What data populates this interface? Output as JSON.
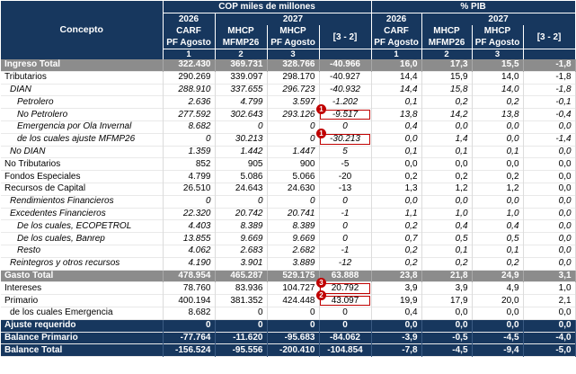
{
  "header": {
    "concept": "Concepto",
    "group_cop": "COP miles de millones",
    "group_pib": "% PIB",
    "year_2026": "2026",
    "year_2027": "2027",
    "carf": "CARF",
    "pf_agosto": "PF Agosto",
    "mhcp": "MHCP",
    "mfmp26": "MFMP26",
    "diff": "[3 - 2]",
    "num1": "1",
    "num2": "2",
    "num3": "3"
  },
  "markers": {
    "m1": "1",
    "m2": "1",
    "m3": "3",
    "m4": "2"
  },
  "rows": [
    {
      "label": "Ingreso Total",
      "cop": [
        "322.430",
        "369.731",
        "328.766",
        "-40.966"
      ],
      "pib": [
        "16,0",
        "17,3",
        "15,5",
        "-1,8"
      ]
    },
    {
      "label": "Tributarios",
      "cop": [
        "290.269",
        "339.097",
        "298.170",
        "-40.927"
      ],
      "pib": [
        "14,4",
        "15,9",
        "14,0",
        "-1,8"
      ]
    },
    {
      "label": "DIAN",
      "cop": [
        "288.910",
        "337.655",
        "296.723",
        "-40.932"
      ],
      "pib": [
        "14,4",
        "15,8",
        "14,0",
        "-1,8"
      ]
    },
    {
      "label": "Petrolero",
      "cop": [
        "2.636",
        "4.799",
        "3.597",
        "-1.202"
      ],
      "pib": [
        "0,1",
        "0,2",
        "0,2",
        "-0,1"
      ]
    },
    {
      "label": "No Petrolero",
      "cop": [
        "277.592",
        "302.643",
        "293.126",
        "-9.517"
      ],
      "pib": [
        "13,8",
        "14,2",
        "13,8",
        "-0,4"
      ]
    },
    {
      "label": "Emergencia por Ola Invernal",
      "cop": [
        "8.682",
        "0",
        "0",
        "0"
      ],
      "pib": [
        "0,4",
        "0,0",
        "0,0",
        "0,0"
      ]
    },
    {
      "label": "de los cuales ajuste MFMP26",
      "cop": [
        "0",
        "30.213",
        "0",
        "-30.213"
      ],
      "pib": [
        "0,0",
        "1,4",
        "0,0",
        "-1,4"
      ]
    },
    {
      "label": "No DIAN",
      "cop": [
        "1.359",
        "1.442",
        "1.447",
        "5"
      ],
      "pib": [
        "0,1",
        "0,1",
        "0,1",
        "0,0"
      ]
    },
    {
      "label": "No Tributarios",
      "cop": [
        "852",
        "905",
        "900",
        "-5"
      ],
      "pib": [
        "0,0",
        "0,0",
        "0,0",
        "0,0"
      ]
    },
    {
      "label": "Fondos Especiales",
      "cop": [
        "4.799",
        "5.086",
        "5.066",
        "-20"
      ],
      "pib": [
        "0,2",
        "0,2",
        "0,2",
        "0,0"
      ]
    },
    {
      "label": "Recursos de Capital",
      "cop": [
        "26.510",
        "24.643",
        "24.630",
        "-13"
      ],
      "pib": [
        "1,3",
        "1,2",
        "1,2",
        "0,0"
      ]
    },
    {
      "label": "Rendimientos Financieros",
      "cop": [
        "0",
        "0",
        "0",
        "0"
      ],
      "pib": [
        "0,0",
        "0,0",
        "0,0",
        "0,0"
      ]
    },
    {
      "label": "Excedentes Financieros",
      "cop": [
        "22.320",
        "20.742",
        "20.741",
        "-1"
      ],
      "pib": [
        "1,1",
        "1,0",
        "1,0",
        "0,0"
      ]
    },
    {
      "label": "De los cuales, ECOPETROL",
      "cop": [
        "4.403",
        "8.389",
        "8.389",
        "0"
      ],
      "pib": [
        "0,2",
        "0,4",
        "0,4",
        "0,0"
      ]
    },
    {
      "label": "De los cuales, Banrep",
      "cop": [
        "13.855",
        "9.669",
        "9.669",
        "0"
      ],
      "pib": [
        "0,7",
        "0,5",
        "0,5",
        "0,0"
      ]
    },
    {
      "label": "Resto",
      "cop": [
        "4.062",
        "2.683",
        "2.682",
        "-1"
      ],
      "pib": [
        "0,2",
        "0,1",
        "0,1",
        "0,0"
      ]
    },
    {
      "label": "Reintegros y otros recursos",
      "cop": [
        "4.190",
        "3.901",
        "3.889",
        "-12"
      ],
      "pib": [
        "0,2",
        "0,2",
        "0,2",
        "0,0"
      ]
    },
    {
      "label": "Gasto Total",
      "cop": [
        "478.954",
        "465.287",
        "529.175",
        "63.888"
      ],
      "pib": [
        "23,8",
        "21,8",
        "24,9",
        "3,1"
      ]
    },
    {
      "label": "Intereses",
      "cop": [
        "78.760",
        "83.936",
        "104.727",
        "20.792"
      ],
      "pib": [
        "3,9",
        "3,9",
        "4,9",
        "1,0"
      ]
    },
    {
      "label": "Primario",
      "cop": [
        "400.194",
        "381.352",
        "424.448",
        "43.097"
      ],
      "pib": [
        "19,9",
        "17,9",
        "20,0",
        "2,1"
      ]
    },
    {
      "label": "de los cuales Emergencia",
      "cop": [
        "8.682",
        "0",
        "0",
        "0"
      ],
      "pib": [
        "0,4",
        "0,0",
        "0,0",
        "0,0"
      ]
    },
    {
      "label": "Ajuste requerido",
      "cop": [
        "0",
        "0",
        "0",
        "0"
      ],
      "pib": [
        "0,0",
        "0,0",
        "0,0",
        "0,0"
      ]
    },
    {
      "label": "Balance Primario",
      "cop": [
        "-77.764",
        "-11.620",
        "-95.683",
        "-84.062"
      ],
      "pib": [
        "-3,9",
        "-0,5",
        "-4,5",
        "-4,0"
      ]
    },
    {
      "label": "Balance Total",
      "cop": [
        "-156.524",
        "-95.556",
        "-200.410",
        "-104.854"
      ],
      "pib": [
        "-7,8",
        "-4,5",
        "-9,4",
        "-5,0"
      ]
    }
  ]
}
